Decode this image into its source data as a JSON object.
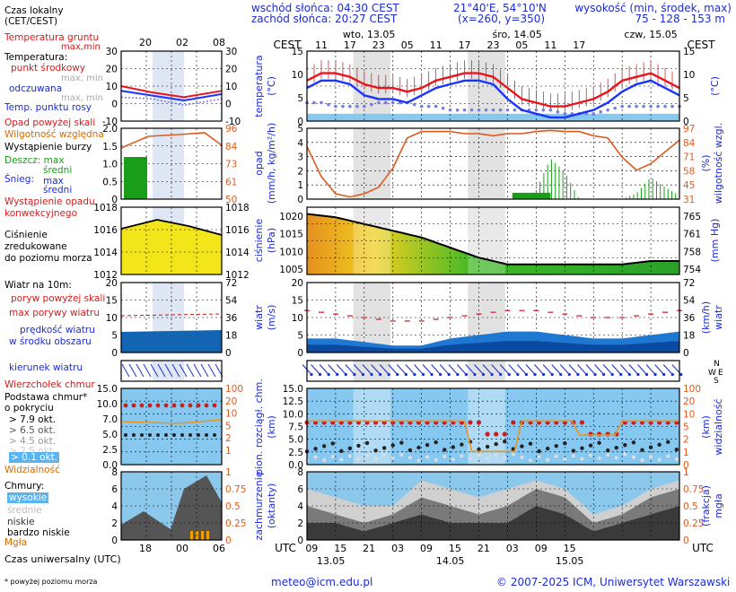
{
  "header": {
    "sunrise": "wschód słońca: 04:30 CEST",
    "sunset": "zachód słońca: 20:27 CEST",
    "coords": "21°40'E, 54°10'N",
    "grid": "(x=260, y=350)",
    "altitude_title": "wysokość (min, środek, max)",
    "altitude_values": "75 - 128 - 153 m"
  },
  "legend": {
    "local_time": "Czas lokalny",
    "local_time_sub": "(CET/CEST)",
    "soil_temp": "Temperatura gruntu",
    "soil_temp_sub": "max,min",
    "temperature": "Temperatura:",
    "midpoint": "punkt środkowy",
    "max_min": "max, min",
    "felt": "odczuwana",
    "felt_sub": "max, min",
    "dew_point": "Temp. punktu rosy",
    "precip_above": "Opad powyżej skali",
    "humidity": "Wilgotność względna",
    "storm": "Wystąpienie burzy",
    "rain": "Deszcz: max",
    "rain_mid": "średni",
    "snow": "Śnieg:",
    "snow_max": "max",
    "snow_mid": "średni",
    "convective": "Wystąpienie opadu",
    "convective2": "konwekcyjnego",
    "pressure1": "Ciśnienie",
    "pressure2": "zredukowane",
    "pressure3": "do poziomu morza",
    "wind_title": "Wiatr na",
    "wind_level": "10m:",
    "gusts_above": "poryw powyżej skali",
    "max_gusts": "max porywy wiatru",
    "wind_speed": "prędkość wiatru",
    "wind_speed2": "w środku obszaru",
    "wind_dir": "kierunek wiatru",
    "cloud_top": "Wierzchołek chmur",
    "cloud_base": "Podstawa chmur*",
    "cloud_base2": "o pokryciu",
    "okt79": "> 7.9 okt.",
    "okt65": "> 6.5 okt.",
    "okt45": "> 4.5 okt.",
    "okt25": "> 2.5 okt.",
    "okt01": "> 0.1 okt.",
    "visibility": "Widzialność",
    "clouds": "Chmury:",
    "high": "wysokie",
    "mid": "średnie",
    "low": "niskie",
    "very_low": "bardzo niskie",
    "fog": "Mgła",
    "utc_time": "Czas uniwersalny (UTC)",
    "footnote": "* powyżej poziomu morza"
  },
  "footer": {
    "email": "meteo@icm.edu.pl",
    "copyright": "© 2007-2025 ICM, Uniwersytet Warszawski"
  },
  "axis_titles": {
    "cest": "CEST",
    "utc": "UTC",
    "temperature": "temperatura",
    "temp_unit": "(°C)",
    "precip": "opad",
    "precip_unit": "(mm/h, kg/m²/h)",
    "humidity": "wilgotność wzgl.",
    "humidity_unit": "(%)",
    "pressure": "ciśnienie",
    "pressure_unit": "(hPa)",
    "pressure_unit2": "(mm Hg)",
    "wind": "wiatr",
    "wind_unit": "(m/s)",
    "wind_unit2": "(km/h)",
    "cloud_height": "pion. rozciągł. chm.",
    "cloud_height_unit": "(km)",
    "visibility": "widzialność",
    "visibility_unit": "(km)",
    "cloudiness": "zachmurzenie",
    "cloudiness_unit": "(oktanty)",
    "fog": "mgła",
    "fog_unit": "(frakcja)"
  },
  "time_axis": {
    "top_days": [
      "wto, 13.05",
      "śro, 14.05",
      "czw, 15.05"
    ],
    "top_hours": [
      "11",
      "17",
      "23",
      "05",
      "11",
      "17",
      "23",
      "05",
      "11",
      "17"
    ],
    "bottom_hours": [
      "09",
      "15",
      "21",
      "03",
      "09",
      "15",
      "21",
      "03",
      "09",
      "15"
    ],
    "bottom_days": [
      "13.05",
      "14.05",
      "15.05"
    ],
    "legend_top_hours": [
      "20",
      "02",
      "08"
    ],
    "legend_bottom_hours": [
      "18",
      "00",
      "06"
    ]
  },
  "ticks": {
    "temp_left": [
      "15",
      "10",
      "5",
      "0"
    ],
    "temp_right": [
      "15",
      "10",
      "5",
      "0"
    ],
    "precip_left": [
      "5",
      "4",
      "3",
      "2",
      "1",
      "0"
    ],
    "humidity_right": [
      "97",
      "84",
      "71",
      "58",
      "45",
      "31"
    ],
    "pressure_left": [
      "1020",
      "1015",
      "1010",
      "1005"
    ],
    "pressure_right": [
      "765",
      "761",
      "758",
      "754"
    ],
    "wind_left": [
      "20",
      "15",
      "10",
      "5",
      "0"
    ],
    "wind_right": [
      "72",
      "54",
      "36",
      "18",
      "0"
    ],
    "cloud_left": [
      "15.0",
      "12.5",
      "10.0",
      "7.5",
      "5.0",
      "2.5",
      "0.0"
    ],
    "vis_right": [
      "100",
      "20",
      "10",
      "5",
      "2",
      "1",
      "0"
    ],
    "octa_left": [
      "8",
      "6",
      "4",
      "2",
      "0"
    ],
    "fog_right": [
      "1",
      "0.75",
      "0.5",
      "0.25",
      "0"
    ],
    "leg_temp_left": [
      "30",
      "20",
      "10",
      "0",
      "-10"
    ],
    "leg_temp_right": [
      "30",
      "20",
      "10",
      "0",
      "-10"
    ],
    "leg_precip_left": [
      "2.0",
      "1.5",
      "1.0",
      "0.5",
      "0"
    ],
    "leg_hum_right": [
      "96",
      "84",
      "73",
      "61",
      "50"
    ],
    "leg_press_left": [
      "1018",
      "1016",
      "1014",
      "1012"
    ],
    "leg_press_right": [
      "1018",
      "1016",
      "1014",
      "1012"
    ],
    "leg_wind_left": [
      "20",
      "15",
      "10",
      "5",
      "0"
    ],
    "leg_wind_right": [
      "72",
      "54",
      "36",
      "18",
      "0"
    ],
    "leg_cloud_left": [
      "15.0",
      "10.0",
      "7.0",
      "5.0",
      "2.5",
      "0.0"
    ],
    "leg_vis_right": [
      "100",
      "20",
      "10",
      "5",
      "2",
      "1"
    ],
    "leg_octa_left": [
      "8",
      "6",
      "4",
      "2",
      "0"
    ],
    "leg_fog_right": [
      "1",
      "0.75",
      "0.5",
      "0.25",
      "0"
    ]
  },
  "colors": {
    "temp": "#e8141e",
    "felt": "#1a33ff",
    "dew": "#7c7ce8",
    "humidity": "#e05a1e",
    "rain": "#1a9e1a",
    "wind": "#0064c8",
    "gust": "#c8141e",
    "visibility": "#e89620",
    "night": "#e2e2e2",
    "sky": "#87c8f0"
  },
  "chart_data": [
    {
      "type": "line",
      "title": "temperatura",
      "x_hours_from_start": [
        0,
        3,
        6,
        9,
        12,
        15,
        18,
        21,
        24,
        27,
        30,
        33,
        36,
        39,
        42,
        45,
        48,
        51,
        54,
        57,
        60,
        63,
        66,
        69,
        72,
        75,
        78
      ],
      "series": [
        {
          "name": "punkt środkowy",
          "values": [
            9,
            11,
            11,
            10,
            8,
            7,
            7,
            6,
            7,
            9,
            10,
            11,
            11,
            10,
            7,
            4,
            3,
            2,
            2,
            3,
            4,
            6,
            9,
            10,
            11,
            9,
            7
          ]
        },
        {
          "name": "odczuwana",
          "values": [
            7,
            9,
            9,
            8,
            5,
            4,
            4,
            3,
            5,
            7,
            8,
            9,
            9,
            8,
            4,
            1,
            0,
            -1,
            -1,
            0,
            1,
            3,
            6,
            8,
            9,
            7,
            5
          ]
        },
        {
          "name": "Temp. punktu rosy",
          "values": [
            3,
            3,
            2,
            2,
            2,
            3,
            3,
            3,
            2,
            2,
            1,
            1,
            1,
            1,
            1,
            1,
            1,
            1,
            0,
            0,
            0,
            1,
            2,
            2,
            2,
            2,
            2
          ]
        }
      ],
      "ylim": [
        -2,
        17
      ]
    },
    {
      "type": "bar",
      "title": "opad",
      "x_hours_from_start": [
        0,
        3,
        6,
        9,
        12,
        15,
        18,
        21,
        24,
        27,
        30,
        33,
        36,
        39,
        42,
        45,
        48,
        51,
        54,
        57,
        60,
        63,
        66,
        69,
        72,
        75,
        78
      ],
      "series": [
        {
          "name": "Deszcz: max",
          "values": [
            0,
            0,
            0,
            0,
            0,
            0,
            0,
            0,
            0,
            0,
            0,
            0,
            0,
            0,
            0,
            0,
            0.4,
            1.8,
            1.2,
            0,
            0,
            0,
            0,
            0.3,
            1.1,
            0.6,
            0.2
          ]
        },
        {
          "name": "Deszcz: średni",
          "values": [
            0,
            0,
            0,
            0,
            0,
            0,
            0,
            0,
            0,
            0,
            0,
            0,
            0,
            0,
            0,
            0,
            0.1,
            0.4,
            0.3,
            0,
            0,
            0,
            0,
            0.1,
            0.2,
            0.1,
            0
          ]
        },
        {
          "name": "Wilgotność względna",
          "values": [
            80,
            52,
            36,
            33,
            36,
            42,
            60,
            88,
            94,
            94,
            94,
            92,
            92,
            90,
            92,
            92,
            94,
            95,
            94,
            94,
            90,
            88,
            70,
            58,
            64,
            75,
            86
          ]
        }
      ],
      "ylim": [
        0,
        5
      ]
    },
    {
      "type": "area",
      "title": "ciśnienie",
      "x_hours_from_start": [
        0,
        6,
        12,
        18,
        24,
        30,
        36,
        42,
        48,
        54,
        60,
        66,
        72,
        78
      ],
      "values": [
        1020,
        1019,
        1017,
        1015,
        1013,
        1010,
        1007,
        1005,
        1005,
        1005,
        1005,
        1005,
        1006,
        1006
      ],
      "ylim": [
        1002,
        1022
      ]
    },
    {
      "type": "area",
      "title": "wiatr",
      "x_hours_from_start": [
        0,
        6,
        12,
        18,
        24,
        30,
        36,
        42,
        48,
        54,
        60,
        66,
        72,
        78
      ],
      "series": [
        {
          "name": "prędkość wiatru",
          "values": [
            4,
            4,
            3,
            2,
            2,
            4,
            5,
            6,
            6,
            5,
            4,
            4,
            5,
            6
          ]
        },
        {
          "name": "max porywy wiatru",
          "values": [
            12,
            11,
            10,
            9,
            9,
            10,
            11,
            12,
            12,
            11,
            10,
            10,
            11,
            12
          ]
        }
      ],
      "ylim": [
        0,
        20
      ]
    },
    {
      "type": "area",
      "title": "zachmurzenie",
      "x_hours_from_start": [
        0,
        6,
        12,
        18,
        24,
        30,
        36,
        42,
        48,
        54,
        60,
        66,
        72,
        78
      ],
      "series": [
        {
          "name": "wysokie",
          "values": [
            6,
            5,
            4,
            4,
            7,
            6,
            5,
            6,
            7,
            6,
            3,
            4,
            6,
            7
          ]
        },
        {
          "name": "średnie",
          "values": [
            4,
            3,
            2,
            3,
            5,
            4,
            3,
            4,
            6,
            5,
            2,
            3,
            5,
            6
          ]
        },
        {
          "name": "niskie",
          "values": [
            2,
            2,
            1,
            2,
            3,
            2,
            2,
            2,
            4,
            3,
            1,
            2,
            3,
            4
          ]
        }
      ],
      "ylim": [
        0,
        8
      ]
    }
  ]
}
